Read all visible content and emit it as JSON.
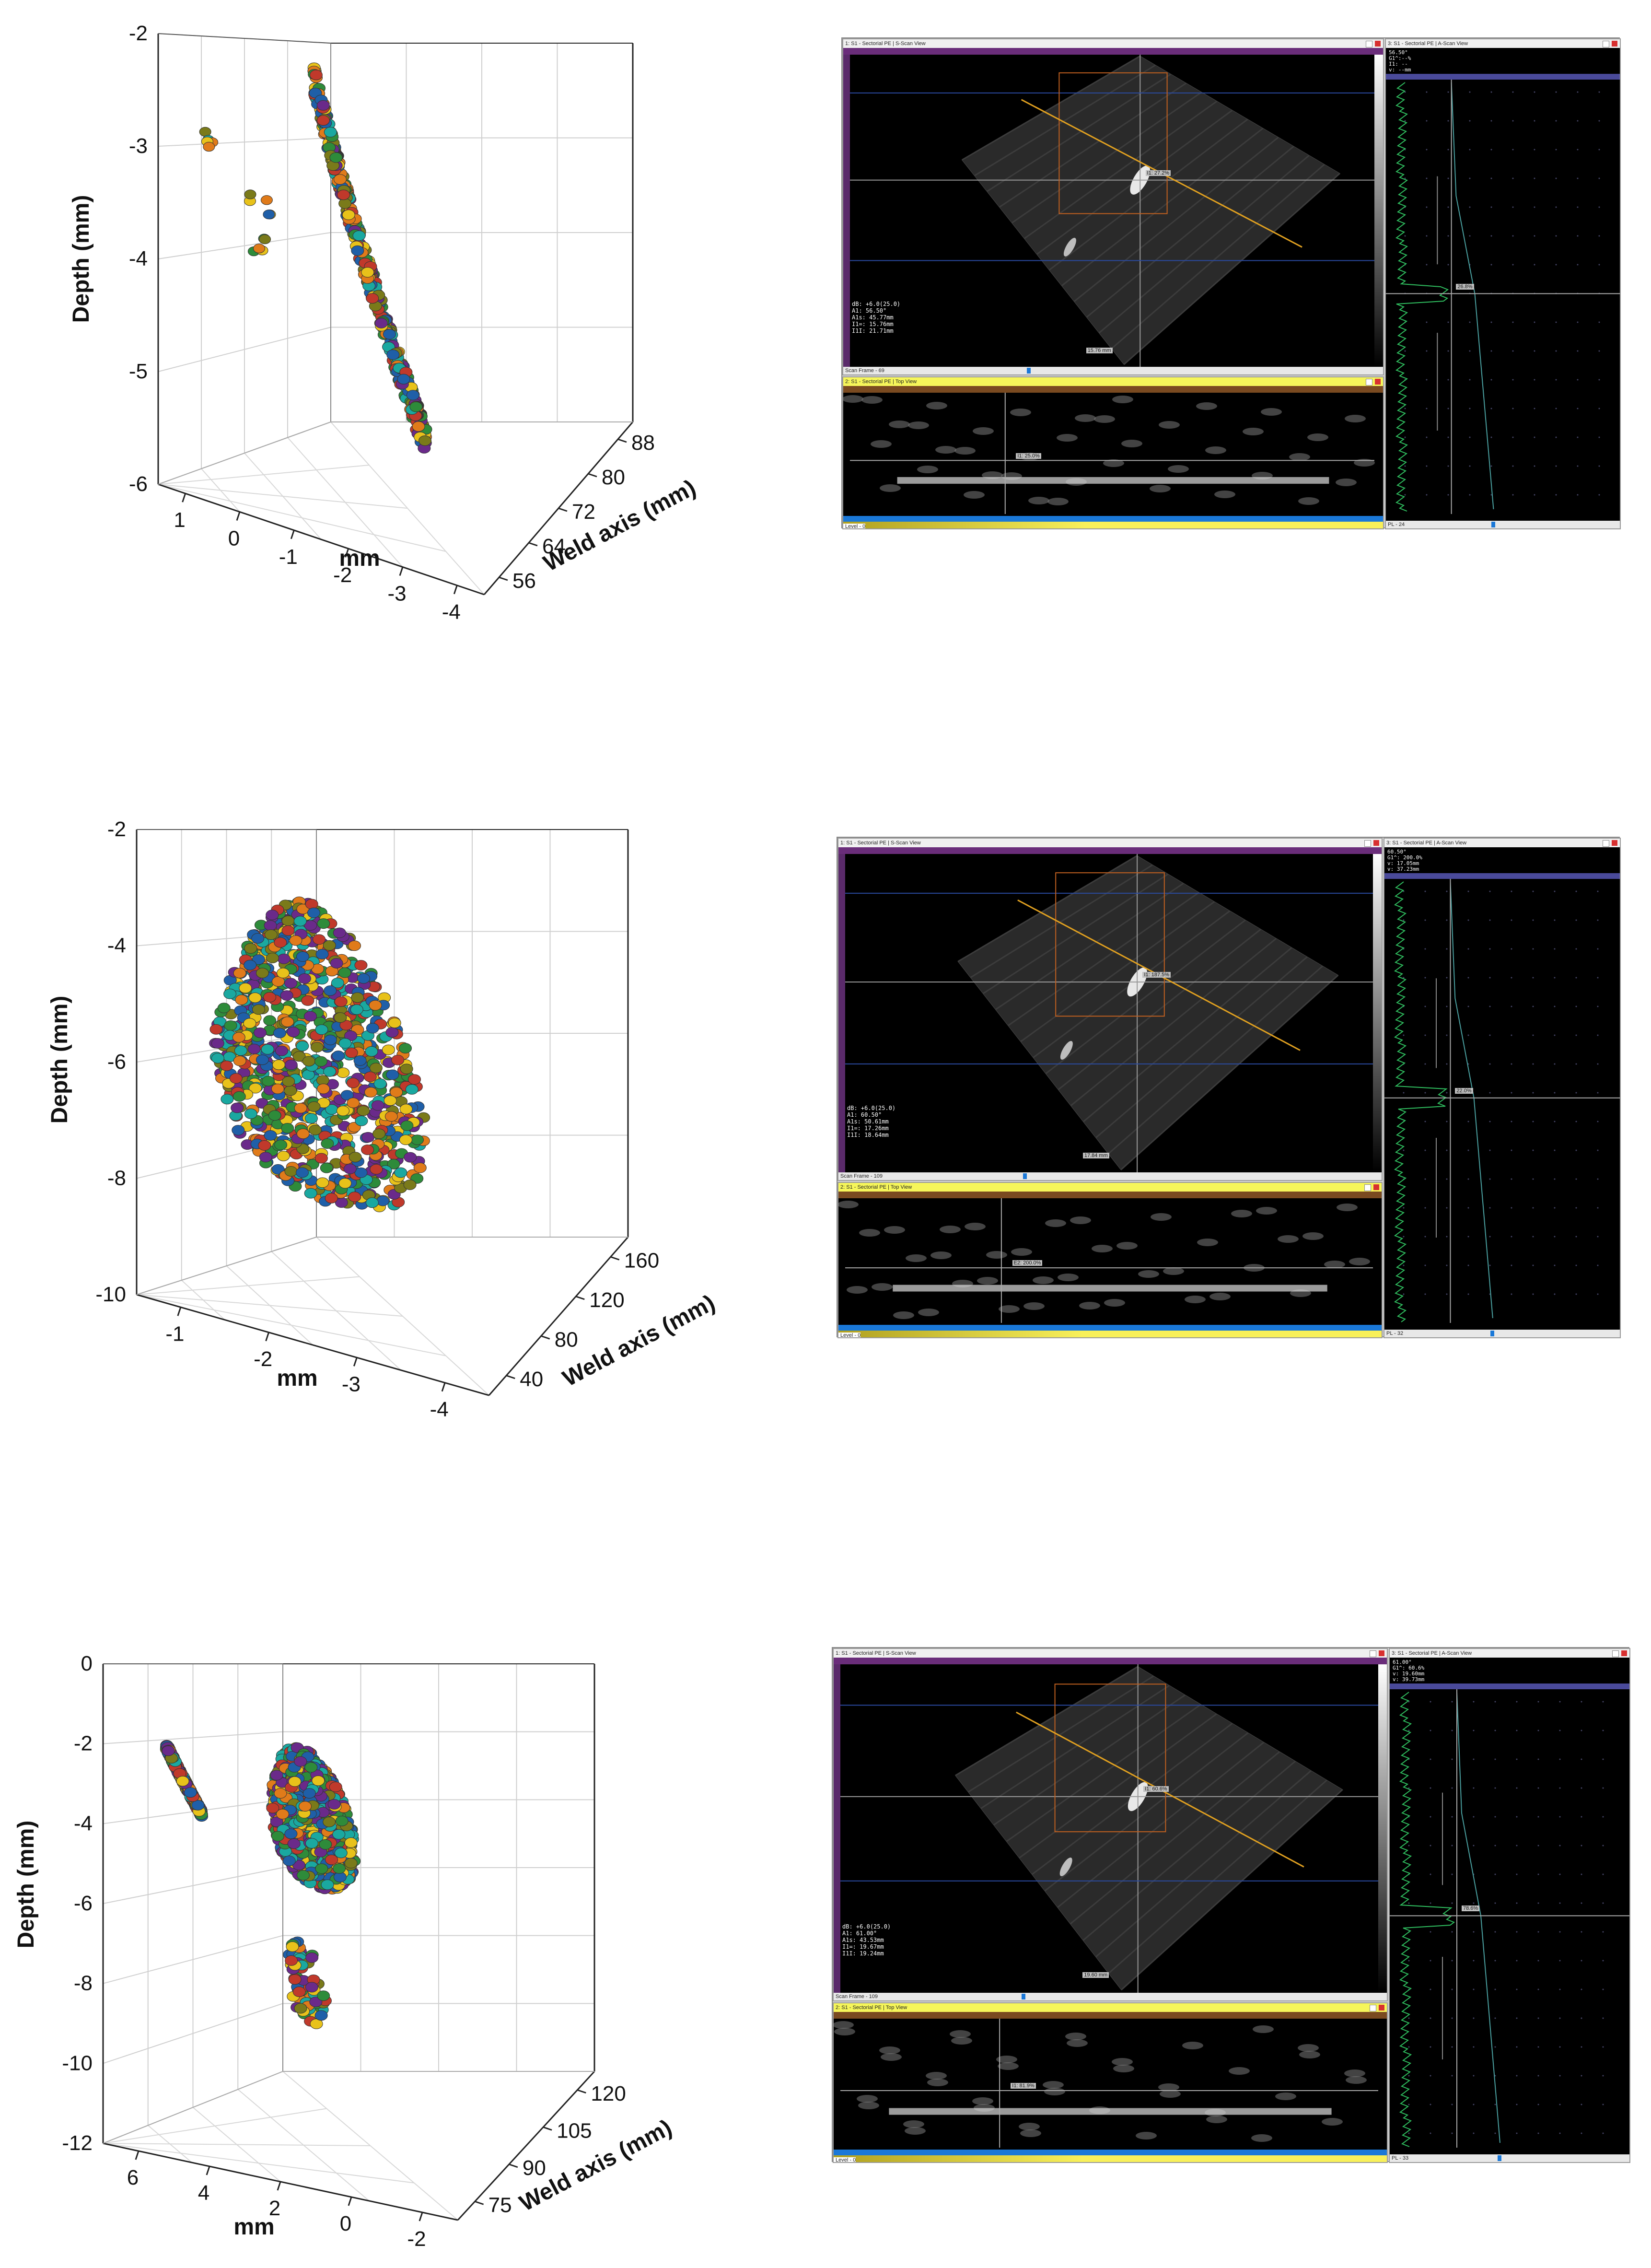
{
  "chart_data": [
    {
      "type": "scatter",
      "subtype": "3d-scatter",
      "panel": "top",
      "ylabel": "Depth (mm)",
      "xlabel": "mm",
      "zlabel": "Weld axis (mm)",
      "y_ticks": [
        "-2",
        "-3",
        "-4",
        "-5",
        "-6"
      ],
      "x_ticks": [
        "1",
        "0",
        "-1",
        "-2",
        "-3",
        "-4"
      ],
      "z_ticks": [
        "56",
        "64",
        "72",
        "80",
        "88"
      ],
      "ylim": [
        -6,
        -2
      ],
      "xlim": [
        1.5,
        -4
      ],
      "zlim": [
        56,
        88
      ],
      "grid": true,
      "clusters": [
        {
          "x_range": [
            -3.2,
            -1.8
          ],
          "z_range": [
            60,
            88
          ],
          "depth_range": [
            -5.1,
            -2.6
          ],
          "shape": "elongated"
        },
        {
          "x_range": [
            0.6,
            0.8
          ],
          "z_range": [
            56,
            58
          ],
          "depth_range": [
            -2.9,
            -2.7
          ],
          "shape": "isolated"
        },
        {
          "x_range": [
            -0.4,
            0.0
          ],
          "z_range": [
            56,
            60
          ],
          "depth_range": [
            -3.3,
            -3.1
          ],
          "shape": "isolated"
        },
        {
          "x_range": [
            -0.3,
            -0.1
          ],
          "z_range": [
            56,
            58
          ],
          "depth_range": [
            -3.7,
            -3.5
          ],
          "shape": "isolated"
        }
      ]
    },
    {
      "type": "scatter",
      "subtype": "3d-scatter",
      "panel": "middle",
      "ylabel": "Depth (mm)",
      "xlabel": "mm",
      "zlabel": "Weld axis (mm)",
      "y_ticks": [
        "-2",
        "-4",
        "-6",
        "-8",
        "-10"
      ],
      "x_ticks": [
        "-1",
        "-2",
        "-3",
        "-4"
      ],
      "z_ticks": [
        "40",
        "80",
        "120",
        "160"
      ],
      "ylim": [
        -10,
        -2
      ],
      "xlim": [
        -0.5,
        -4
      ],
      "zlim": [
        40,
        160
      ],
      "grid": true,
      "clusters": [
        {
          "x_range": [
            -3.8,
            -1.2
          ],
          "z_range": [
            40,
            160
          ],
          "depth_range": [
            -7.5,
            -3.8
          ],
          "shape": "elliptical"
        }
      ]
    },
    {
      "type": "scatter",
      "subtype": "3d-scatter",
      "panel": "bottom",
      "ylabel": "Depth (mm)",
      "xlabel": "mm",
      "zlabel": "Weld axis (mm)",
      "y_ticks": [
        "0",
        "-2",
        "-4",
        "-6",
        "-8",
        "-10",
        "-12"
      ],
      "x_ticks": [
        "6",
        "4",
        "2",
        "0",
        "-2"
      ],
      "z_ticks": [
        "75",
        "90",
        "105",
        "120"
      ],
      "ylim": [
        -12,
        0
      ],
      "xlim": [
        7,
        -2
      ],
      "zlim": [
        75,
        120
      ],
      "grid": true,
      "clusters": [
        {
          "x_range": [
            4.5,
            5.5
          ],
          "z_range": [
            75,
            85
          ],
          "depth_range": [
            -3.3,
            -1.8
          ],
          "shape": "elongated"
        },
        {
          "x_range": [
            -1.5,
            1.5
          ],
          "z_range": [
            100,
            120
          ],
          "depth_range": [
            -5.8,
            -3.5
          ],
          "shape": "elliptical"
        },
        {
          "x_range": [
            -1.0,
            0.5
          ],
          "z_range": [
            110,
            120
          ],
          "depth_range": [
            -9.8,
            -8.4
          ],
          "shape": "small"
        }
      ]
    }
  ],
  "series_colors": [
    "#1f5fa8",
    "#c0392b",
    "#2e8b3a",
    "#e8c21a",
    "#6a2a8a",
    "#e07b1a",
    "#1aa8a0",
    "#7a7a1a"
  ],
  "ut_panels": [
    {
      "svc_title": "1: S1 - Sectorial PE | S-Scan View",
      "top_title": "2: S1 - Sectorial PE | Top View",
      "ascan_title": "3: S1 - Sectorial PE | A-Scan View",
      "readout_lines": [
        "dB: +6.0(25.0)",
        "A1: 56.50°",
        "A1s: 45.77mm",
        "I1=: 15.76mm",
        "I1I: 21.71mm"
      ],
      "ascan_readout": [
        "56.50°",
        "G1^:--%",
        "I1: --",
        "v: --mm"
      ],
      "tag_a": "I1: 27.2%",
      "tag_b": "15.76 mm",
      "tag_c": "I1: 25.0%",
      "tag_d": "26.8%",
      "scan_frame": "Scan Frame - 69",
      "level": "Level - 0",
      "pl": "PL - 24"
    },
    {
      "svc_title": "1: S1 - Sectorial PE | S-Scan View",
      "top_title": "2: S1 - Sectorial PE | Top View",
      "ascan_title": "3: S1 - Sectorial PE | A-Scan View",
      "readout_lines": [
        "dB: +6.0(25.0)",
        "A1: 60.50°",
        "A1s: 50.61mm",
        "I1=: 17.26mm",
        "I1I: 18.64mm"
      ],
      "ascan_readout": [
        "60.50°",
        "G1^: 200.0%",
        "v: 17.05mm",
        "v: 37.23mm"
      ],
      "tag_a": "I1: 187.5%",
      "tag_b": "17.84 mm",
      "tag_c": "E2: 200.0%",
      "tag_d": "22.0%",
      "scan_frame": "Scan Frame - 109",
      "level": "Level - 0",
      "pl": "PL - 32"
    },
    {
      "svc_title": "1: S1 - Sectorial PE | S-Scan View",
      "top_title": "2: S1 - Sectorial PE | Top View",
      "ascan_title": "3: S1 - Sectorial PE | A-Scan View",
      "readout_lines": [
        "dB: +6.0(25.0)",
        "A1: 61.00°",
        "A1s: 43.53mm",
        "I1=: 19.67mm",
        "I1I: 19.24mm"
      ],
      "ascan_readout": [
        "61.00°",
        "G1^: 60.6%",
        "v: 19.60mm",
        "v: 39.73mm"
      ],
      "tag_a": "I1: 60.6%",
      "tag_b": "19.60 mm",
      "tag_c": "I1: 81.9%",
      "tag_d": "78.6%",
      "scan_frame": "Scan Frame - 109",
      "level": "Level - 0",
      "pl": "PL - 33"
    }
  ]
}
